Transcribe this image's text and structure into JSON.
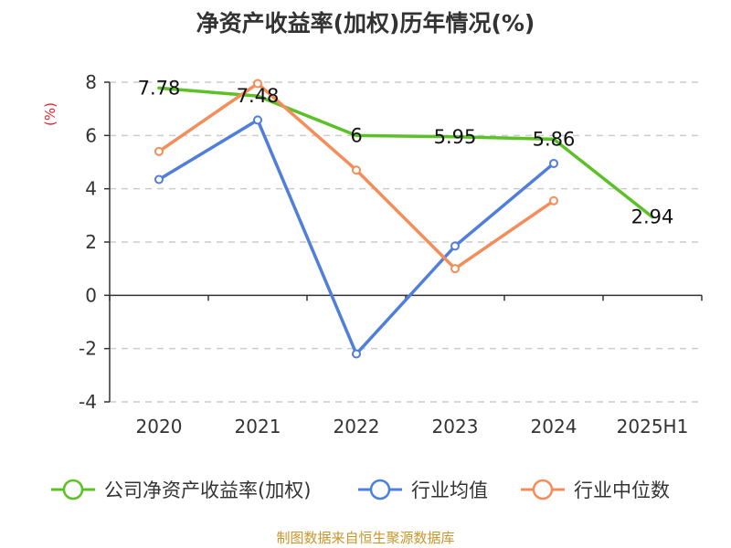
{
  "title": "净资产收益率(加权)历年情况(%)",
  "unit_label": "(%)",
  "source": "制图数据来自恒生聚源数据库",
  "colors": {
    "company": "#5cc126",
    "industry_avg": "#4f7fdb",
    "industry_median": "#f48d5a",
    "grid": "#cccccc",
    "axis": "#333333",
    "unit": "#e0242b",
    "source": "#c8952b"
  },
  "legend": [
    {
      "label": "公司净资产收益率(加权)",
      "color": "#5cc126"
    },
    {
      "label": "行业均值",
      "color": "#4f7fdb"
    },
    {
      "label": "行业中位数",
      "color": "#f48d5a"
    }
  ],
  "chart_data": {
    "type": "line",
    "title": "净资产收益率(加权)历年情况(%)",
    "categories": [
      "2020",
      "2021",
      "2022",
      "2023",
      "2024",
      "2025H1"
    ],
    "ylabel": "(%)",
    "ylim": [
      -4,
      8
    ],
    "yticks": [
      -4,
      -2,
      0,
      2,
      4,
      6,
      8
    ],
    "grid": true,
    "legend_position": "bottom",
    "series": [
      {
        "name": "公司净资产收益率(加权)",
        "values": [
          7.78,
          7.48,
          6,
          5.95,
          5.86,
          2.94
        ],
        "labels": [
          "7.78",
          "7.48",
          "6",
          "5.95",
          "5.86",
          "2.94"
        ],
        "color": "#5cc126",
        "show_labels": true,
        "show_markers": false
      },
      {
        "name": "行业均值",
        "values": [
          4.35,
          6.58,
          -2.2,
          1.85,
          4.95,
          null
        ],
        "color": "#4f7fdb",
        "show_labels": false,
        "show_markers": true
      },
      {
        "name": "行业中位数",
        "values": [
          5.4,
          7.95,
          4.7,
          1.0,
          3.55,
          null
        ],
        "color": "#f48d5a",
        "show_labels": false,
        "show_markers": true
      }
    ]
  }
}
